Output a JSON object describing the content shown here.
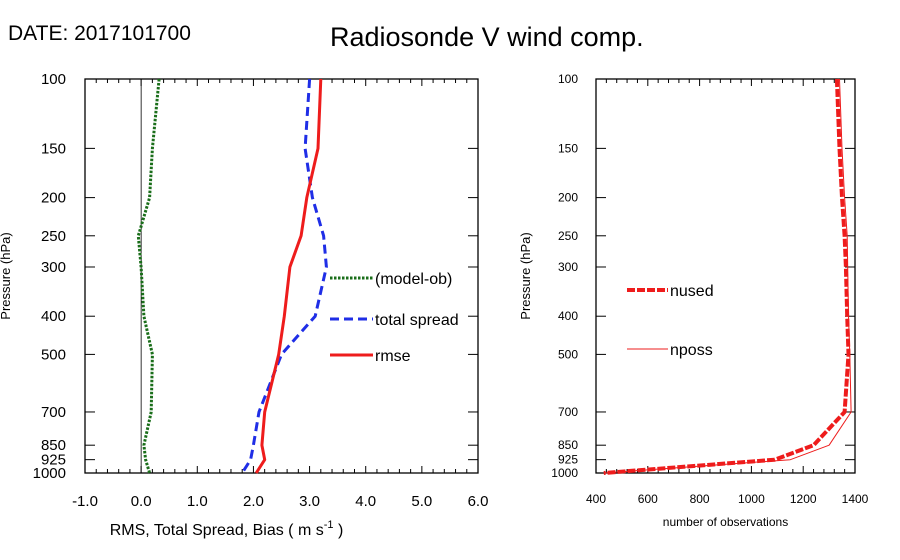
{
  "header": {
    "date": "DATE: 2017101700",
    "title": "Radiosonde V wind comp."
  },
  "chart_data": [
    {
      "id": "left",
      "type": "line",
      "xlabel": "RMS, Total Spread, Bias ( m s",
      "xlabel_sup": "-1",
      "xlabel_end": " )",
      "ylabel": "Pressure (hPa)",
      "xlim": [
        -1.0,
        6.0
      ],
      "ylim": [
        1000,
        100
      ],
      "y_scale": "log",
      "xticks": [
        -1.0,
        0.0,
        1.0,
        2.0,
        3.0,
        4.0,
        5.0,
        6.0
      ],
      "xtick_labels": [
        "-1.0",
        "0.0",
        "1.0",
        "2.0",
        "3.0",
        "4.0",
        "5.0",
        "6.0"
      ],
      "yticks": [
        100,
        150,
        200,
        250,
        300,
        400,
        500,
        700,
        850,
        925,
        1000
      ],
      "ytick_labels": [
        "100",
        "150",
        "200",
        "250",
        "300",
        "400",
        "500",
        "700",
        "850",
        "925",
        "1000"
      ],
      "reference_line_x": 0.0,
      "legend_placement": "right-middle",
      "series": [
        {
          "name": "(model-ob)",
          "color": "#1a6e1a",
          "style": "dotted",
          "points": [
            [
              0.32,
              100
            ],
            [
              0.2,
              150
            ],
            [
              0.15,
              200
            ],
            [
              -0.05,
              250
            ],
            [
              0.0,
              300
            ],
            [
              0.05,
              400
            ],
            [
              0.2,
              500
            ],
            [
              0.18,
              700
            ],
            [
              0.05,
              850
            ],
            [
              0.08,
              925
            ],
            [
              0.15,
              1000
            ]
          ]
        },
        {
          "name": "total spread",
          "color": "#1f2ee6",
          "style": "dashed",
          "points": [
            [
              3.0,
              100
            ],
            [
              2.92,
              150
            ],
            [
              3.05,
              200
            ],
            [
              3.25,
              250
            ],
            [
              3.3,
              300
            ],
            [
              3.1,
              400
            ],
            [
              2.5,
              500
            ],
            [
              2.1,
              700
            ],
            [
              2.0,
              850
            ],
            [
              1.95,
              925
            ],
            [
              1.8,
              1000
            ]
          ]
        },
        {
          "name": "rmse",
          "color": "#ee1c1c",
          "style": "solid",
          "points": [
            [
              3.2,
              100
            ],
            [
              3.15,
              150
            ],
            [
              2.95,
              200
            ],
            [
              2.85,
              250
            ],
            [
              2.65,
              300
            ],
            [
              2.55,
              400
            ],
            [
              2.45,
              500
            ],
            [
              2.2,
              700
            ],
            [
              2.15,
              850
            ],
            [
              2.2,
              925
            ],
            [
              2.05,
              1000
            ]
          ]
        }
      ]
    },
    {
      "id": "right",
      "type": "line",
      "xlabel": "number of observations",
      "ylabel": "Pressure (hPa)",
      "xlim": [
        400,
        1400
      ],
      "ylim": [
        1000,
        100
      ],
      "y_scale": "log",
      "xticks": [
        400,
        600,
        800,
        1000,
        1200,
        1400
      ],
      "xtick_labels": [
        "400",
        "600",
        "800",
        "1000",
        "1200",
        "1400"
      ],
      "yticks": [
        100,
        150,
        200,
        250,
        300,
        400,
        500,
        700,
        850,
        925,
        1000
      ],
      "ytick_labels": [
        "100",
        "150",
        "200",
        "250",
        "300",
        "400",
        "500",
        "700",
        "850",
        "925",
        "1000"
      ],
      "legend_placement": "left-middle",
      "series": [
        {
          "name": "nused",
          "color": "#ee1c1c",
          "style": "dashed-thick",
          "points": [
            [
              1330,
              100
            ],
            [
              1340,
              150
            ],
            [
              1350,
              200
            ],
            [
              1360,
              250
            ],
            [
              1365,
              300
            ],
            [
              1370,
              400
            ],
            [
              1375,
              500
            ],
            [
              1360,
              700
            ],
            [
              1240,
              850
            ],
            [
              1090,
              925
            ],
            [
              430,
              1000
            ]
          ]
        },
        {
          "name": "nposs",
          "color": "#ee1c1c",
          "style": "thin",
          "points": [
            [
              1340,
              100
            ],
            [
              1350,
              150
            ],
            [
              1360,
              200
            ],
            [
              1370,
              250
            ],
            [
              1372,
              300
            ],
            [
              1375,
              400
            ],
            [
              1380,
              500
            ],
            [
              1385,
              700
            ],
            [
              1300,
              850
            ],
            [
              1150,
              925
            ],
            [
              430,
              1000
            ]
          ]
        }
      ]
    }
  ]
}
